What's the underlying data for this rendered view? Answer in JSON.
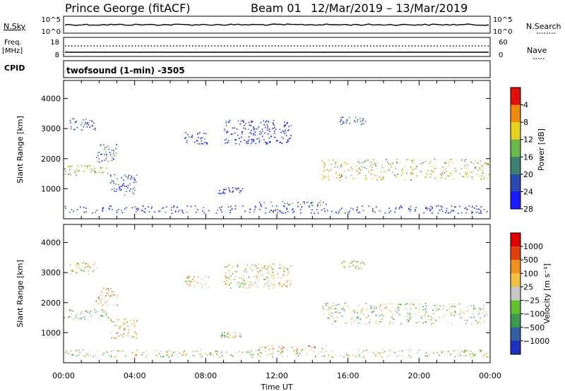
{
  "header": {
    "station": "Prince George (fitACF)",
    "beam": "Beam 01",
    "dates": "12/Mar/2019 – 13/Mar/2019"
  },
  "strips": {
    "nsky_label": "N.Sky",
    "nsky_ticks": [
      "10^5",
      "10^0"
    ],
    "nsearch_label": "N.Search",
    "nsearch_ticks": [
      "10^5",
      "10^0"
    ],
    "freq_label_1": "Freq.",
    "freq_label_2": "[MHz]",
    "freq_ticks": [
      "18",
      "8"
    ],
    "nave_label": "Nave",
    "nave_ticks": [
      "60",
      "0"
    ],
    "cpid_label": "CPID",
    "cpid_text": "twofsound (1-min) -3505"
  },
  "chart_data": [
    {
      "type": "scatter",
      "name_shown": "Power",
      "ylabel": "Slant Range [km]",
      "xlabel": "",
      "xlim_hours": [
        0,
        24
      ],
      "ylim": [
        0,
        4600
      ],
      "yticks": [
        "1000",
        "2000",
        "3000",
        "4000"
      ],
      "xticks": [
        "00:00",
        "04:00",
        "08:00",
        "12:00",
        "16:00",
        "20:00",
        "00:00"
      ],
      "colorbar": {
        "label": "Power [dB]",
        "ticks": [
          "4",
          "8",
          "12",
          "16",
          "20",
          "24",
          "28"
        ],
        "colors": [
          "#1a1aff",
          "#2a4ab0",
          "#3b8070",
          "#6ab84a",
          "#e8d020",
          "#f08a10",
          "#e01010"
        ]
      },
      "regions": [
        {
          "x": [
            0.0,
            2.5
          ],
          "y": [
            1450,
            1800
          ],
          "v": 0.55
        },
        {
          "x": [
            0.3,
            1.9
          ],
          "y": [
            2950,
            3350
          ],
          "v": 0.2
        },
        {
          "x": [
            1.8,
            3.0
          ],
          "y": [
            1900,
            2500
          ],
          "v": 0.3
        },
        {
          "x": [
            2.6,
            4.1
          ],
          "y": [
            800,
            1500
          ],
          "v": 0.2
        },
        {
          "x": [
            6.8,
            8.2
          ],
          "y": [
            2500,
            2900
          ],
          "v": 0.1
        },
        {
          "x": [
            8.7,
            10.1
          ],
          "y": [
            850,
            1050
          ],
          "v": 0.15
        },
        {
          "x": [
            9.0,
            12.8
          ],
          "y": [
            2500,
            3300
          ],
          "v": 0.1
        },
        {
          "x": [
            11.0,
            14.8
          ],
          "y": [
            450,
            600
          ],
          "v": 0.3
        },
        {
          "x": [
            14.5,
            24.0
          ],
          "y": [
            1300,
            2000
          ],
          "v": 0.6
        },
        {
          "x": [
            15.5,
            17.0
          ],
          "y": [
            3150,
            3400
          ],
          "v": 0.25
        },
        {
          "x": [
            0.0,
            24.0
          ],
          "y": [
            200,
            450
          ],
          "v": 0.1
        }
      ]
    },
    {
      "type": "scatter",
      "name_shown": "Velocity",
      "ylabel": "Slant Range [km]",
      "xlabel": "Time UT",
      "xlim_hours": [
        0,
        24
      ],
      "ylim": [
        0,
        4600
      ],
      "yticks": [
        "1000",
        "2000",
        "3000",
        "4000"
      ],
      "xticks": [
        "00:00",
        "04:00",
        "08:00",
        "12:00",
        "16:00",
        "20:00",
        "00:00"
      ],
      "colorbar": {
        "label": "Velocity [m s⁻¹]",
        "ticks": [
          "1000",
          "500",
          "100",
          "25",
          "−25",
          "−100",
          "−500",
          "−1000"
        ],
        "colors": [
          "#2030c0",
          "#3060a0",
          "#3c9a50",
          "#60c030",
          "#c8c8c8",
          "#f0c040",
          "#f09020",
          "#e04010",
          "#e00000"
        ]
      },
      "regions": [
        {
          "x": [
            0.0,
            2.5
          ],
          "y": [
            1450,
            1800
          ],
          "v": 0.45
        },
        {
          "x": [
            0.3,
            1.9
          ],
          "y": [
            2950,
            3350
          ],
          "v": 0.6
        },
        {
          "x": [
            1.8,
            3.0
          ],
          "y": [
            1900,
            2500
          ],
          "v": 0.6
        },
        {
          "x": [
            2.6,
            4.1
          ],
          "y": [
            800,
            1500
          ],
          "v": 0.6
        },
        {
          "x": [
            6.8,
            8.2
          ],
          "y": [
            2500,
            2900
          ],
          "v": 0.55
        },
        {
          "x": [
            8.7,
            10.1
          ],
          "y": [
            850,
            1050
          ],
          "v": 0.45
        },
        {
          "x": [
            9.0,
            12.8
          ],
          "y": [
            2500,
            3300
          ],
          "v": 0.55
        },
        {
          "x": [
            11.0,
            14.8
          ],
          "y": [
            450,
            600
          ],
          "v": 0.7
        },
        {
          "x": [
            14.5,
            24.0
          ],
          "y": [
            1300,
            2000
          ],
          "v": 0.45
        },
        {
          "x": [
            15.5,
            17.0
          ],
          "y": [
            3150,
            3400
          ],
          "v": 0.55
        },
        {
          "x": [
            0.0,
            24.0
          ],
          "y": [
            200,
            450
          ],
          "v": 0.5
        }
      ]
    }
  ]
}
